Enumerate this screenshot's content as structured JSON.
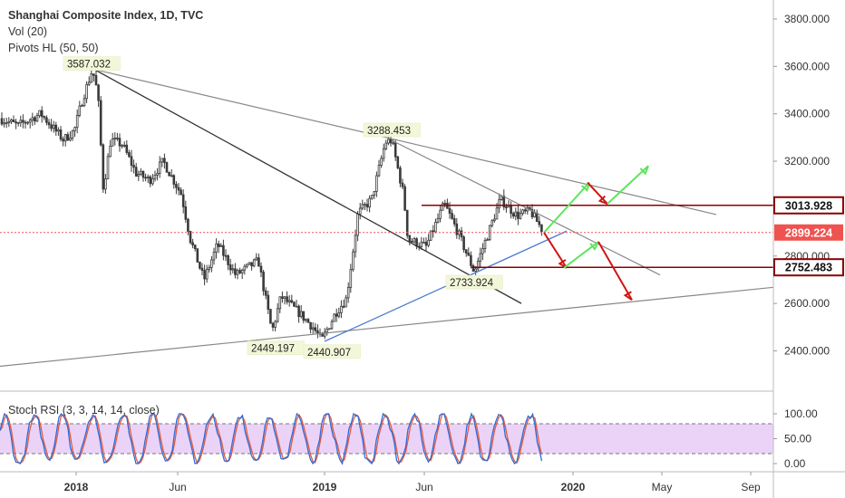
{
  "legend": {
    "title": "Shanghai Composite Index, 1D, TVC",
    "line2": "Vol (20)",
    "line3": "Pivots HL (50, 50)"
  },
  "stoch_label": "Stoch RSI (3, 3, 14, 14, close)",
  "price_axis": {
    "ticks": [
      "3800.000",
      "3600.000",
      "3400.000",
      "3200.000",
      "3000.000",
      "2800.000",
      "2600.000",
      "2400.000"
    ],
    "tick_values": [
      3800,
      3600,
      3400,
      3200,
      3000,
      2800,
      2600,
      2400
    ],
    "range": [
      2230,
      3880
    ]
  },
  "stoch_axis": {
    "ticks": [
      "100.00",
      "50.00",
      "0.00"
    ],
    "tick_values": [
      100,
      50,
      0
    ],
    "band": [
      20,
      80
    ]
  },
  "time_axis": {
    "labels": [
      "2018",
      "Jun",
      "2019",
      "Jun",
      "2020",
      "May",
      "Sep"
    ]
  },
  "price_badges": [
    {
      "text": "3013.928",
      "value": 3013.928,
      "style": "outline",
      "color": "#8b0000"
    },
    {
      "text": "2899.224",
      "value": 2899.224,
      "style": "filled",
      "color": "#ef5350"
    },
    {
      "text": "2752.483",
      "value": 2752.483,
      "style": "outline",
      "color": "#8b0000"
    }
  ],
  "pivot_labels": [
    {
      "text": "3587.032",
      "value": 3587.032
    },
    {
      "text": "3288.453",
      "value": 3288.453
    },
    {
      "text": "2733.924",
      "value": 2733.924
    },
    {
      "text": "2449.197",
      "value": 2449.197
    },
    {
      "text": "2440.907",
      "value": 2440.907
    }
  ],
  "colors": {
    "up": "#26a69a",
    "down": "#ef5350",
    "candle": "#3a3a3a",
    "trend": "#333333",
    "trend_light": "#888888",
    "support": "#4a7bd4",
    "level": "#8b0000",
    "arrow_up": "#5ce65c",
    "arrow_down": "#d21414",
    "stoch_k": "#2f6bd8",
    "stoch_d": "#e45a3c",
    "stoch_band": "#e6c8f5"
  },
  "chart_data": {
    "type": "line",
    "title": "Shanghai Composite Index, 1D, TVC",
    "series": [
      {
        "name": "Shanghai Composite Index",
        "x": [
          "2017-10",
          "2017-12",
          "2018-01",
          "2018-02",
          "2018-03",
          "2018-04",
          "2018-05",
          "2018-06",
          "2018-07",
          "2018-08",
          "2018-09",
          "2018-10",
          "2018-11",
          "2018-12",
          "2019-01",
          "2019-02",
          "2019-03",
          "2019-04",
          "2019-05",
          "2019-06",
          "2019-07",
          "2019-08",
          "2019-09",
          "2019-10",
          "2019-11",
          "2019-12"
        ],
        "y": [
          3380,
          3330,
          3420,
          3560,
          3270,
          3140,
          3110,
          2830,
          2800,
          2730,
          2700,
          2560,
          2620,
          2520,
          2450,
          2700,
          3100,
          3250,
          2900,
          2950,
          2920,
          2780,
          3000,
          2930,
          2900,
          2899
        ]
      }
    ],
    "pivots": [
      3587.032,
      3288.453,
      2733.924,
      2449.197,
      2440.907
    ],
    "levels": [
      3013.928,
      2899.224,
      2752.483
    ],
    "projection_up": [
      [
        2899,
        3110
      ],
      [
        3020,
        3180
      ],
      [
        2750,
        2860
      ]
    ],
    "projection_down": [
      [
        2899,
        2750
      ],
      [
        3110,
        3020
      ],
      [
        2860,
        2610
      ]
    ],
    "ylim": [
      2230,
      3880
    ],
    "grid": false,
    "legend": "top-left"
  }
}
